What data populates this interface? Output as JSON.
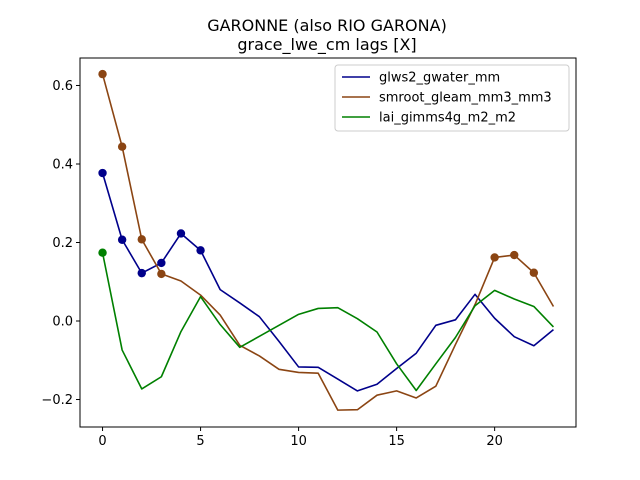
{
  "chart_data": {
    "type": "line",
    "title": "GARONNE (also RIO GARONA)",
    "subtitle": "grace_lwe_cm lags [X]",
    "xlabel": "",
    "ylabel": "",
    "xlim": [
      -1.15,
      24.15
    ],
    "ylim": [
      -0.27,
      0.67
    ],
    "xticks": [
      0,
      5,
      10,
      15,
      20
    ],
    "yticks": [
      -0.2,
      0.0,
      0.2,
      0.4,
      0.6
    ],
    "ytick_labels": [
      "−0.2",
      "0.0",
      "0.2",
      "0.4",
      "0.6"
    ],
    "grid": false,
    "legend_position": "top-right",
    "x": [
      0,
      1,
      2,
      3,
      4,
      5,
      6,
      7,
      8,
      9,
      10,
      11,
      12,
      13,
      14,
      15,
      16,
      17,
      18,
      19,
      20,
      21,
      22,
      23
    ],
    "series": [
      {
        "name": "glws2_gwater_mm",
        "color": "#00008b",
        "values": [
          0.377,
          0.207,
          0.122,
          0.148,
          0.223,
          0.18,
          0.08,
          0.046,
          0.011,
          -0.052,
          -0.117,
          -0.118,
          -0.148,
          -0.178,
          -0.161,
          -0.121,
          -0.082,
          -0.011,
          0.003,
          0.068,
          0.007,
          -0.04,
          -0.063,
          -0.022
        ],
        "markers": [
          0,
          1,
          2,
          3,
          4,
          5
        ]
      },
      {
        "name": "smroot_gleam_mm3_mm3",
        "color": "#8b4513",
        "values": [
          0.629,
          0.444,
          0.208,
          0.12,
          0.102,
          0.066,
          0.015,
          -0.062,
          -0.089,
          -0.123,
          -0.131,
          -0.133,
          -0.227,
          -0.226,
          -0.189,
          -0.178,
          -0.196,
          -0.166,
          -0.06,
          0.042,
          0.162,
          0.168,
          0.123,
          0.037
        ],
        "markers": [
          0,
          1,
          2,
          3,
          20,
          21,
          22
        ]
      },
      {
        "name": "lai_gimms4g_m2_m2",
        "color": "#008000",
        "values": [
          0.174,
          -0.074,
          -0.173,
          -0.142,
          -0.027,
          0.062,
          -0.009,
          -0.067,
          -0.039,
          -0.011,
          0.017,
          0.032,
          0.034,
          0.006,
          -0.028,
          -0.109,
          -0.177,
          -0.109,
          -0.042,
          0.039,
          0.078,
          0.056,
          0.037,
          -0.015
        ],
        "markers": [
          0
        ]
      }
    ]
  }
}
